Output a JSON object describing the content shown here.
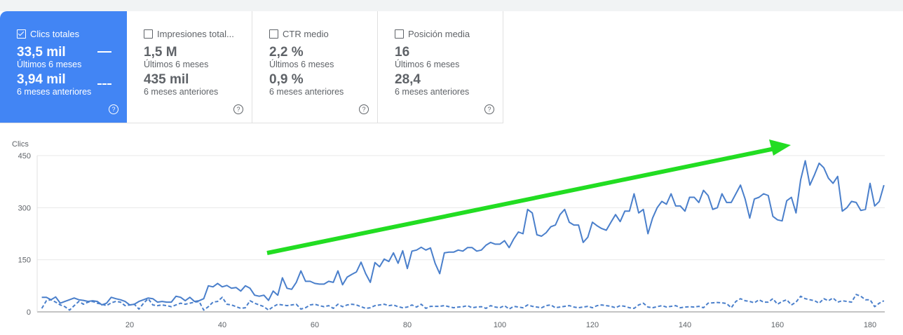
{
  "cards": [
    {
      "label": "Clics totales",
      "value": "33,5 mil",
      "value_sub": "Últimos 6 meses",
      "prev": "3,94 mil",
      "prev_sub": "6 meses anteriores",
      "checked": true
    },
    {
      "label": "Impresiones total...",
      "value": "1,5 M",
      "value_sub": "Últimos 6 meses",
      "prev": "435 mil",
      "prev_sub": "6 meses anteriores",
      "checked": false
    },
    {
      "label": "CTR medio",
      "value": "2,2 %",
      "value_sub": "Últimos 6 meses",
      "prev": "0,9 %",
      "prev_sub": "6 meses anteriores",
      "checked": false
    },
    {
      "label": "Posición media",
      "value": "16",
      "value_sub": "Últimos 6 meses",
      "prev": "28,4",
      "prev_sub": "6 meses anteriores",
      "checked": false
    }
  ],
  "help_glyph": "?",
  "colors": {
    "accent": "#4285f4",
    "line": "#4a7fcb",
    "arrow": "#22dd22"
  },
  "chart_data": {
    "type": "line",
    "ylabel": "Clics",
    "xlabel": "",
    "ylim": [
      0,
      450
    ],
    "xlim": [
      0,
      185
    ],
    "yticks": [
      0,
      150,
      300,
      450
    ],
    "xticks": [
      20,
      40,
      60,
      80,
      100,
      120,
      140,
      160,
      180
    ],
    "grid": true,
    "annotation": "green upward trend arrow",
    "series": [
      {
        "name": "Últimos 6 meses",
        "style": "solid",
        "values": [
          42,
          42,
          35,
          43,
          25,
          30,
          35,
          40,
          35,
          33,
          30,
          32,
          30,
          20,
          25,
          42,
          38,
          35,
          30,
          20,
          22,
          30,
          35,
          40,
          38,
          28,
          30,
          28,
          28,
          45,
          42,
          32,
          42,
          30,
          32,
          38,
          75,
          72,
          82,
          72,
          76,
          68,
          70,
          60,
          75,
          68,
          48,
          45,
          48,
          33,
          60,
          48,
          98,
          68,
          65,
          85,
          118,
          88,
          88,
          82,
          80,
          80,
          88,
          85,
          118,
          78,
          100,
          108,
          115,
          143,
          110,
          85,
          142,
          130,
          152,
          145,
          170,
          140,
          176,
          125,
          175,
          178,
          186,
          178,
          184,
          140,
          110,
          170,
          172,
          172,
          178,
          175,
          185,
          185,
          175,
          178,
          192,
          200,
          195,
          195,
          205,
          185,
          210,
          230,
          225,
          295,
          285,
          222,
          218,
          228,
          245,
          250,
          280,
          295,
          258,
          250,
          250,
          200,
          215,
          258,
          248,
          240,
          235,
          258,
          280,
          260,
          290,
          290,
          340,
          285,
          295,
          225,
          270,
          300,
          318,
          310,
          340,
          305,
          305,
          290,
          330,
          330,
          315,
          350,
          335,
          295,
          300,
          340,
          315,
          315,
          340,
          365,
          325,
          270,
          325,
          330,
          340,
          335,
          275,
          265,
          262,
          320,
          330,
          285,
          380,
          435,
          365,
          395,
          428,
          415,
          385,
          370,
          390,
          290,
          300,
          318,
          315,
          292,
          295,
          370,
          305,
          318,
          365
        ]
      },
      {
        "name": "6 meses anteriores",
        "style": "dashed",
        "values": [
          10,
          32,
          35,
          28,
          20,
          15,
          5,
          18,
          30,
          22,
          28,
          30,
          25,
          22,
          18,
          26,
          30,
          28,
          18,
          20,
          22,
          8,
          25,
          38,
          20,
          18,
          20,
          18,
          15,
          20,
          25,
          22,
          25,
          28,
          30,
          5,
          15,
          28,
          30,
          42,
          22,
          20,
          15,
          10,
          12,
          32,
          25,
          20,
          15,
          5,
          15,
          22,
          20,
          18,
          20,
          22,
          8,
          12,
          20,
          22,
          18,
          15,
          18,
          10,
          22,
          15,
          20,
          22,
          20,
          15,
          10,
          12,
          18,
          20,
          22,
          18,
          20,
          15,
          12,
          14,
          20,
          14,
          22,
          10,
          16,
          16,
          16,
          18,
          15,
          12,
          14,
          15,
          18,
          12,
          14,
          15,
          10,
          18,
          14,
          12,
          18,
          8,
          16,
          14,
          12,
          20,
          16,
          14,
          12,
          18,
          20,
          12,
          14,
          16,
          18,
          14,
          12,
          14,
          16,
          12,
          18,
          20,
          18,
          16,
          12,
          18,
          16,
          12,
          10,
          20,
          25,
          14,
          12,
          15,
          18,
          14,
          16,
          18,
          12,
          14,
          15,
          14,
          16,
          12,
          25,
          26,
          27,
          26,
          24,
          12,
          30,
          38,
          32,
          30,
          26,
          35,
          28,
          28,
          38,
          22,
          30,
          35,
          20,
          28,
          45,
          38,
          35,
          32,
          25,
          38,
          32,
          40,
          28,
          32,
          30,
          28,
          50,
          45,
          35,
          35,
          15,
          25,
          32
        ]
      }
    ]
  }
}
